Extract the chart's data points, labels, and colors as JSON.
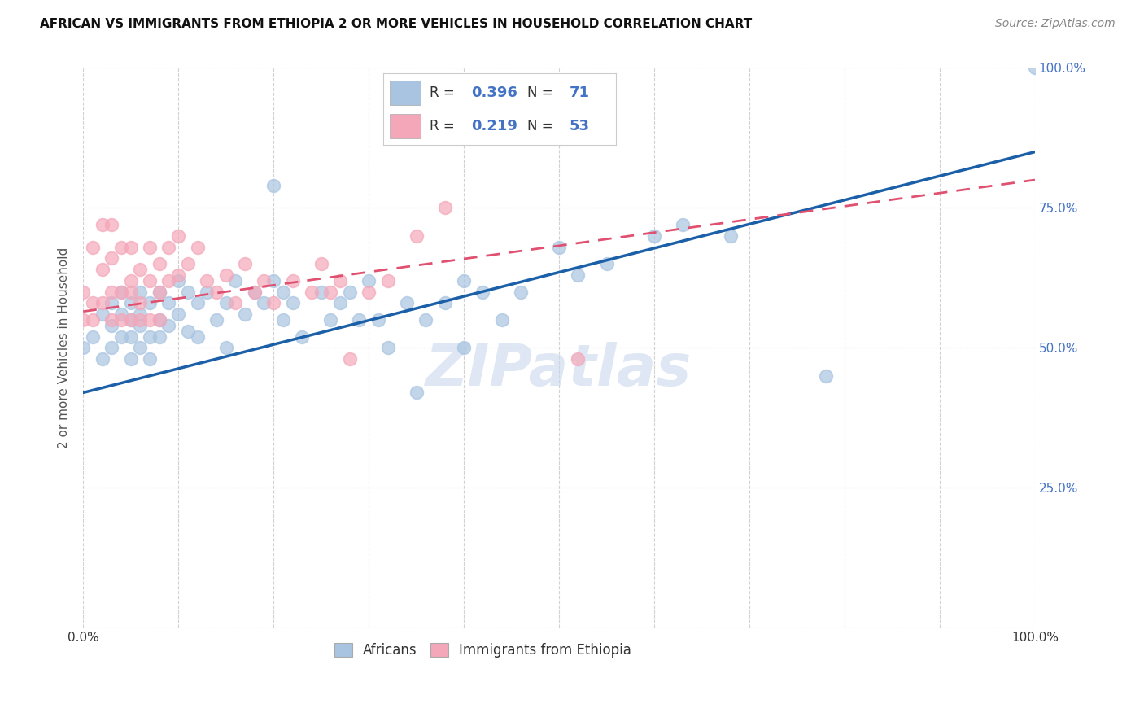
{
  "title": "AFRICAN VS IMMIGRANTS FROM ETHIOPIA 2 OR MORE VEHICLES IN HOUSEHOLD CORRELATION CHART",
  "source": "Source: ZipAtlas.com",
  "ylabel": "2 or more Vehicles in Household",
  "watermark": "ZIPatlas",
  "africans_R": 0.396,
  "africans_N": 71,
  "ethiopia_R": 0.219,
  "ethiopia_N": 53,
  "xlim": [
    0,
    1.0
  ],
  "ylim": [
    0,
    1.0
  ],
  "ytick_vals": [
    0.0,
    0.25,
    0.5,
    0.75,
    1.0
  ],
  "ytick_labels_right": [
    "",
    "25.0%",
    "50.0%",
    "75.0%",
    "100.0%"
  ],
  "xtick_vals": [
    0.0,
    0.1,
    0.2,
    0.3,
    0.4,
    0.5,
    0.6,
    0.7,
    0.8,
    0.9,
    1.0
  ],
  "xtick_labels": [
    "0.0%",
    "",
    "",
    "",
    "",
    "",
    "",
    "",
    "",
    "",
    "100.0%"
  ],
  "blue_scatter_color": "#a8c4e0",
  "pink_scatter_color": "#f4a7b9",
  "blue_line_color": "#1a5fa8",
  "pink_line_color": "#e05070",
  "grid_color": "#cccccc",
  "background_color": "#ffffff",
  "africans_x": [
    0.0,
    0.01,
    0.02,
    0.02,
    0.03,
    0.03,
    0.03,
    0.04,
    0.04,
    0.04,
    0.05,
    0.05,
    0.05,
    0.05,
    0.06,
    0.06,
    0.06,
    0.06,
    0.07,
    0.07,
    0.07,
    0.08,
    0.08,
    0.08,
    0.09,
    0.09,
    0.1,
    0.1,
    0.11,
    0.11,
    0.12,
    0.12,
    0.13,
    0.14,
    0.15,
    0.15,
    0.16,
    0.17,
    0.18,
    0.19,
    0.2,
    0.21,
    0.21,
    0.22,
    0.23,
    0.25,
    0.26,
    0.27,
    0.28,
    0.29,
    0.3,
    0.31,
    0.32,
    0.34,
    0.35,
    0.36,
    0.38,
    0.4,
    0.42,
    0.44,
    0.46,
    0.5,
    0.52,
    0.55,
    0.6,
    0.63,
    0.68,
    0.2,
    0.4,
    0.78,
    1.0
  ],
  "africans_y": [
    0.5,
    0.52,
    0.56,
    0.48,
    0.54,
    0.58,
    0.5,
    0.52,
    0.56,
    0.6,
    0.55,
    0.48,
    0.52,
    0.58,
    0.56,
    0.5,
    0.54,
    0.6,
    0.58,
    0.52,
    0.48,
    0.6,
    0.55,
    0.52,
    0.58,
    0.54,
    0.62,
    0.56,
    0.6,
    0.53,
    0.58,
    0.52,
    0.6,
    0.55,
    0.58,
    0.5,
    0.62,
    0.56,
    0.6,
    0.58,
    0.62,
    0.55,
    0.6,
    0.58,
    0.52,
    0.6,
    0.55,
    0.58,
    0.6,
    0.55,
    0.62,
    0.55,
    0.5,
    0.58,
    0.42,
    0.55,
    0.58,
    0.62,
    0.6,
    0.55,
    0.6,
    0.68,
    0.63,
    0.65,
    0.7,
    0.72,
    0.7,
    0.79,
    0.5,
    0.45,
    1.0
  ],
  "ethiopia_x": [
    0.0,
    0.0,
    0.01,
    0.01,
    0.01,
    0.02,
    0.02,
    0.02,
    0.03,
    0.03,
    0.03,
    0.03,
    0.04,
    0.04,
    0.04,
    0.05,
    0.05,
    0.05,
    0.05,
    0.06,
    0.06,
    0.06,
    0.07,
    0.07,
    0.07,
    0.08,
    0.08,
    0.08,
    0.09,
    0.09,
    0.1,
    0.1,
    0.11,
    0.12,
    0.13,
    0.14,
    0.15,
    0.16,
    0.17,
    0.18,
    0.19,
    0.2,
    0.22,
    0.24,
    0.25,
    0.26,
    0.27,
    0.28,
    0.3,
    0.32,
    0.35,
    0.38,
    0.52
  ],
  "ethiopia_y": [
    0.55,
    0.6,
    0.58,
    0.68,
    0.55,
    0.64,
    0.58,
    0.72,
    0.66,
    0.6,
    0.55,
    0.72,
    0.68,
    0.6,
    0.55,
    0.62,
    0.68,
    0.55,
    0.6,
    0.64,
    0.58,
    0.55,
    0.62,
    0.68,
    0.55,
    0.65,
    0.6,
    0.55,
    0.68,
    0.62,
    0.7,
    0.63,
    0.65,
    0.68,
    0.62,
    0.6,
    0.63,
    0.58,
    0.65,
    0.6,
    0.62,
    0.58,
    0.62,
    0.6,
    0.65,
    0.6,
    0.62,
    0.48,
    0.6,
    0.62,
    0.7,
    0.75,
    0.48
  ],
  "blue_line_x0": 0.0,
  "blue_line_y0": 0.42,
  "blue_line_x1": 1.0,
  "blue_line_y1": 0.85,
  "pink_line_x0": 0.0,
  "pink_line_y0": 0.565,
  "pink_line_x1": 1.0,
  "pink_line_y1": 0.8,
  "title_fontsize": 11,
  "source_fontsize": 10,
  "tick_fontsize": 11,
  "ylabel_fontsize": 11,
  "watermark_fontsize": 52,
  "legend_fontsize": 13
}
